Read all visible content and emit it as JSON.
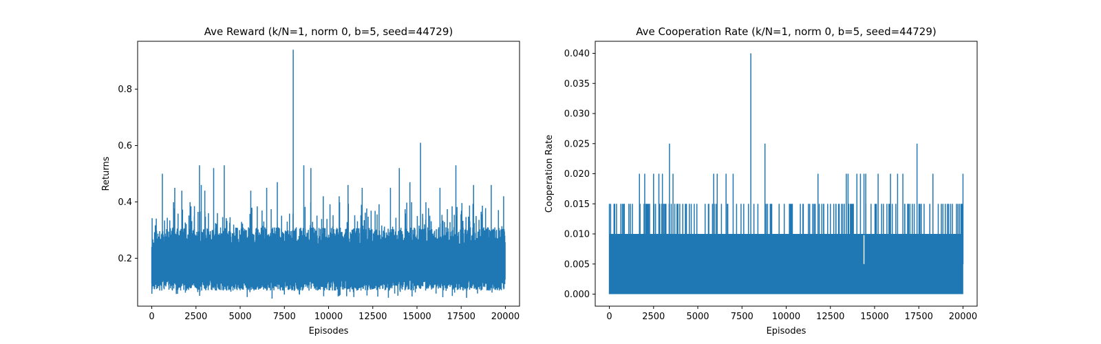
{
  "chart_data": [
    {
      "type": "line",
      "title": "Ave Reward (k/N=1, norm 0, b=5, seed=44729)",
      "xlabel": "Episodes",
      "ylabel": "Returns",
      "xlim": [
        -800,
        20800
      ],
      "ylim": [
        0.03,
        0.97
      ],
      "x_ticks": [
        0,
        2500,
        5000,
        7500,
        10000,
        12500,
        15000,
        17500,
        20000
      ],
      "x_tick_labels": [
        "0",
        "2500",
        "5000",
        "7500",
        "10000",
        "12500",
        "15000",
        "17500",
        "20000"
      ],
      "y_ticks": [
        0.2,
        0.4,
        0.6,
        0.8
      ],
      "y_tick_labels": [
        "0.2",
        "0.4",
        "0.6",
        "0.8"
      ],
      "grid": false,
      "color": "#1f77b4",
      "series": [
        {
          "values_summary": "20000 noisy points, baseline band 0.09-0.30",
          "band": [
            0.09,
            0.3
          ],
          "spikes": [
            [
              600,
              0.5
            ],
            [
              1300,
              0.45
            ],
            [
              1700,
              0.44
            ],
            [
              2700,
              0.53
            ],
            [
              2800,
              0.46
            ],
            [
              3000,
              0.44
            ],
            [
              3500,
              0.52
            ],
            [
              4100,
              0.53
            ],
            [
              5600,
              0.44
            ],
            [
              6500,
              0.45
            ],
            [
              7100,
              0.47
            ],
            [
              8000,
              0.94
            ],
            [
              8600,
              0.53
            ],
            [
              9000,
              0.52
            ],
            [
              9700,
              0.42
            ],
            [
              10600,
              0.42
            ],
            [
              11100,
              0.46
            ],
            [
              11900,
              0.45
            ],
            [
              13500,
              0.45
            ],
            [
              14000,
              0.52
            ],
            [
              14600,
              0.47
            ],
            [
              15200,
              0.61
            ],
            [
              16300,
              0.45
            ],
            [
              17200,
              0.53
            ],
            [
              18200,
              0.46
            ],
            [
              19200,
              0.46
            ],
            [
              19900,
              0.42
            ]
          ]
        }
      ]
    },
    {
      "type": "line",
      "title": "Ave Cooperation Rate (k/N=1, norm 0, b=5, seed=44729)",
      "xlabel": "Episodes",
      "ylabel": "Cooperation Rate",
      "xlim": [
        -800,
        20800
      ],
      "ylim": [
        -0.002,
        0.042
      ],
      "x_ticks": [
        0,
        2500,
        5000,
        7500,
        10000,
        12500,
        15000,
        17500,
        20000
      ],
      "x_tick_labels": [
        "0",
        "2500",
        "5000",
        "7500",
        "10000",
        "12500",
        "15000",
        "17500",
        "20000"
      ],
      "y_ticks": [
        0.0,
        0.005,
        0.01,
        0.015,
        0.02,
        0.025,
        0.03,
        0.035,
        0.04
      ],
      "y_tick_labels": [
        "0.000",
        "0.005",
        "0.010",
        "0.015",
        "0.020",
        "0.025",
        "0.030",
        "0.035",
        "0.040"
      ],
      "grid": false,
      "color": "#1f77b4",
      "series": [
        {
          "values_summary": "20000 points mostly between 0.000 and 0.010 with frequent 0.015 spikes",
          "band": [
            0.0,
            0.01
          ],
          "spikes_015": [
            0,
            300,
            800,
            1100,
            2100,
            2200,
            3200,
            3700,
            4300,
            4800,
            5600,
            6100,
            7600,
            8400,
            9100,
            9600,
            10300,
            10800,
            11500,
            12500,
            13000,
            13800,
            14800,
            15500,
            16000,
            16700,
            17000,
            17800,
            18600,
            19000,
            19400,
            19800
          ],
          "spikes_020": [
            1700,
            2000,
            2500,
            2800,
            3000,
            3600,
            5900,
            6100,
            6600,
            7000,
            11800,
            13400,
            13500,
            14000,
            14200,
            14400,
            14500,
            15200,
            15900,
            16300,
            16600,
            18300,
            20000
          ],
          "spikes_025": [
            3400,
            8800,
            17400
          ],
          "spikes_040": [
            8000
          ],
          "dip": [
            14400,
            0.005
          ]
        }
      ]
    }
  ]
}
